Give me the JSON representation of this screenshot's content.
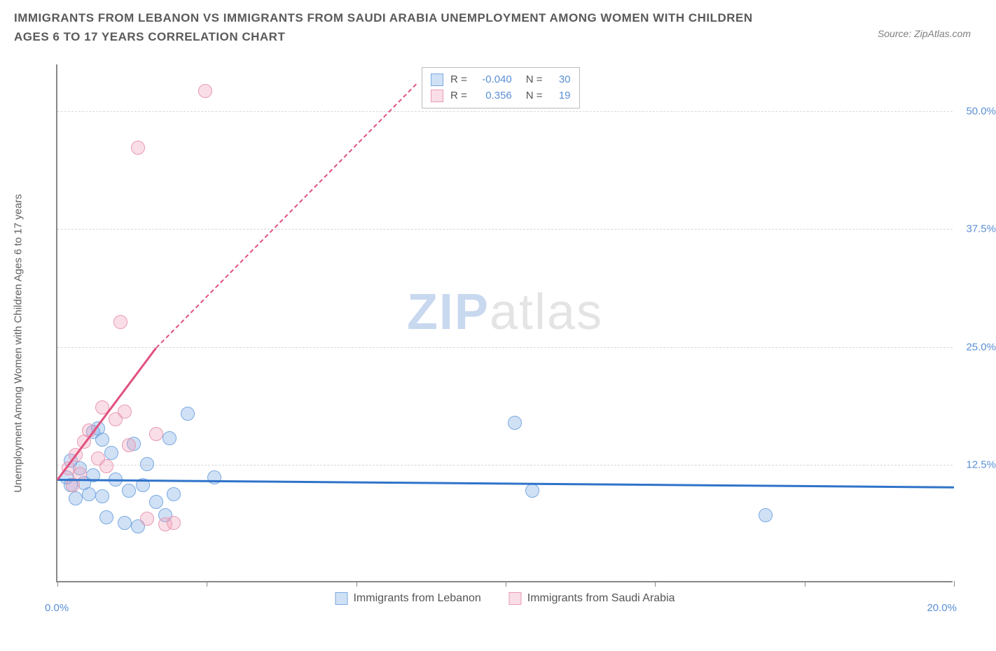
{
  "header": {
    "title": "IMMIGRANTS FROM LEBANON VS IMMIGRANTS FROM SAUDI ARABIA UNEMPLOYMENT AMONG WOMEN WITH CHILDREN AGES 6 TO 17 YEARS CORRELATION CHART",
    "source": "Source: ZipAtlas.com"
  },
  "chart": {
    "type": "scatter",
    "y_axis_label": "Unemployment Among Women with Children Ages 6 to 17 years",
    "watermark_zip": "ZIP",
    "watermark_atlas": "atlas",
    "xlim": [
      0,
      20
    ],
    "ylim": [
      0,
      55
    ],
    "x_ticks": [
      0,
      3.33,
      6.67,
      10,
      13.33,
      16.67,
      20
    ],
    "x_tick_labels_shown": {
      "0": "0.0%",
      "20": "20.0%"
    },
    "y_gridlines": [
      12.5,
      25.0,
      37.5,
      50.0
    ],
    "y_tick_labels": [
      "12.5%",
      "25.0%",
      "37.5%",
      "50.0%"
    ],
    "background_color": "#ffffff",
    "grid_color": "#d8d8d8",
    "axis_color": "#888888",
    "tick_label_color": "#5b8fd6",
    "marker_radius": 10,
    "marker_stroke_width": 1.5,
    "series": [
      {
        "name": "Immigrants from Lebanon",
        "color_fill": "rgba(120,170,230,0.35)",
        "color_stroke": "#7aa9e0",
        "trend_color": "#2f73c9",
        "trend_solid_to_x": 20,
        "trend_y_start": 11.0,
        "trend_y_end": 10.2,
        "r": "-0.040",
        "n": "30",
        "points": [
          [
            0.2,
            11.0
          ],
          [
            0.3,
            10.2
          ],
          [
            0.4,
            8.8
          ],
          [
            0.5,
            12.0
          ],
          [
            0.6,
            10.4
          ],
          [
            0.7,
            9.2
          ],
          [
            0.8,
            15.8
          ],
          [
            0.8,
            11.2
          ],
          [
            0.9,
            16.2
          ],
          [
            1.0,
            9.0
          ],
          [
            1.0,
            15.0
          ],
          [
            1.1,
            6.8
          ],
          [
            1.2,
            13.6
          ],
          [
            1.3,
            10.8
          ],
          [
            1.5,
            6.2
          ],
          [
            1.6,
            9.6
          ],
          [
            1.7,
            14.6
          ],
          [
            1.8,
            5.8
          ],
          [
            1.9,
            10.2
          ],
          [
            2.0,
            12.4
          ],
          [
            2.2,
            8.4
          ],
          [
            2.4,
            7.0
          ],
          [
            2.5,
            15.2
          ],
          [
            2.6,
            9.2
          ],
          [
            2.9,
            17.8
          ],
          [
            3.5,
            11.0
          ],
          [
            10.2,
            16.8
          ],
          [
            10.6,
            9.6
          ],
          [
            15.8,
            7.0
          ],
          [
            0.3,
            12.8
          ]
        ]
      },
      {
        "name": "Immigrants from Saudi Arabia",
        "color_fill": "rgba(240,160,185,0.35)",
        "color_stroke": "#e89ab2",
        "trend_color": "#e0517e",
        "trend_solid_to_x": 2.2,
        "trend_dash_to_x": 8.0,
        "trend_y_start": 11.0,
        "trend_y_solid_end": 25.0,
        "trend_y_dash_end": 53.0,
        "r": "0.356",
        "n": "19",
        "points": [
          [
            0.25,
            12.0
          ],
          [
            0.35,
            10.2
          ],
          [
            0.4,
            13.4
          ],
          [
            0.5,
            11.4
          ],
          [
            0.6,
            14.8
          ],
          [
            0.7,
            16.0
          ],
          [
            0.9,
            13.0
          ],
          [
            1.0,
            18.4
          ],
          [
            1.1,
            12.2
          ],
          [
            1.3,
            17.2
          ],
          [
            1.5,
            18.0
          ],
          [
            1.6,
            14.4
          ],
          [
            1.8,
            46.0
          ],
          [
            2.0,
            6.6
          ],
          [
            2.2,
            15.6
          ],
          [
            2.4,
            6.0
          ],
          [
            2.6,
            6.2
          ],
          [
            3.3,
            52.0
          ],
          [
            1.4,
            27.5
          ]
        ]
      }
    ],
    "stats_box": {
      "r_label": "R =",
      "n_label": "N ="
    },
    "bottom_legend": [
      "Immigrants from Lebanon",
      "Immigrants from Saudi Arabia"
    ]
  }
}
